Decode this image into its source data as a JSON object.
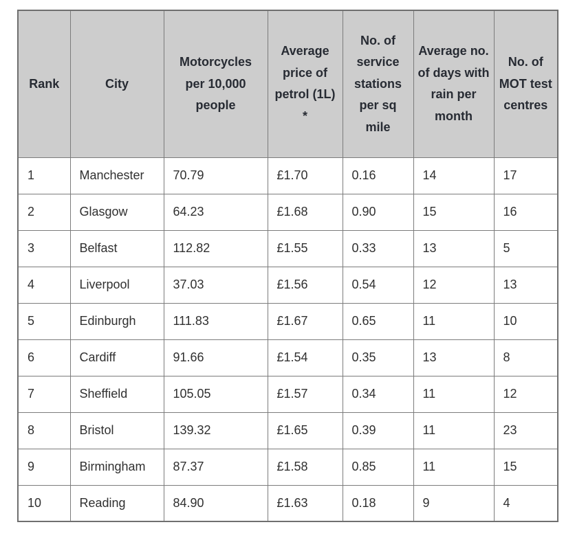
{
  "table": {
    "columns": [
      "Rank",
      "City",
      "Motorcycles per 10,000 people",
      "Average price of petrol (1L) *",
      "No. of service stations per sq mile",
      "Average no. of days with rain per month",
      "No. of MOT test centres"
    ],
    "rows": [
      [
        "1",
        "Manchester",
        "70.79",
        "£1.70",
        "0.16",
        "14",
        "17"
      ],
      [
        "2",
        "Glasgow",
        "64.23",
        "£1.68",
        "0.90",
        "15",
        "16"
      ],
      [
        "3",
        "Belfast",
        "112.82",
        "£1.55",
        "0.33",
        "13",
        "5"
      ],
      [
        "4",
        "Liverpool",
        "37.03",
        "£1.56",
        "0.54",
        "12",
        "13"
      ],
      [
        "5",
        "Edinburgh",
        "111.83",
        "£1.67",
        "0.65",
        "11",
        "10"
      ],
      [
        "6",
        "Cardiff",
        "91.66",
        "£1.54",
        "0.35",
        "13",
        "8"
      ],
      [
        "7",
        "Sheffield",
        "105.05",
        "£1.57",
        "0.34",
        "11",
        "12"
      ],
      [
        "8",
        "Bristol",
        "139.32",
        "£1.65",
        "0.39",
        "11",
        "23"
      ],
      [
        "9",
        "Birmingham",
        "87.37",
        "£1.58",
        "0.85",
        "11",
        "15"
      ],
      [
        "10",
        "Reading",
        "84.90",
        "£1.63",
        "0.18",
        "9",
        "4"
      ]
    ]
  },
  "colors": {
    "header_background": "#cdcdcd",
    "header_text": "#272b33",
    "body_text": "#303030",
    "border": "#7b7b7b",
    "outer_border": "#6f6f6f",
    "page_background": "#ffffff"
  }
}
